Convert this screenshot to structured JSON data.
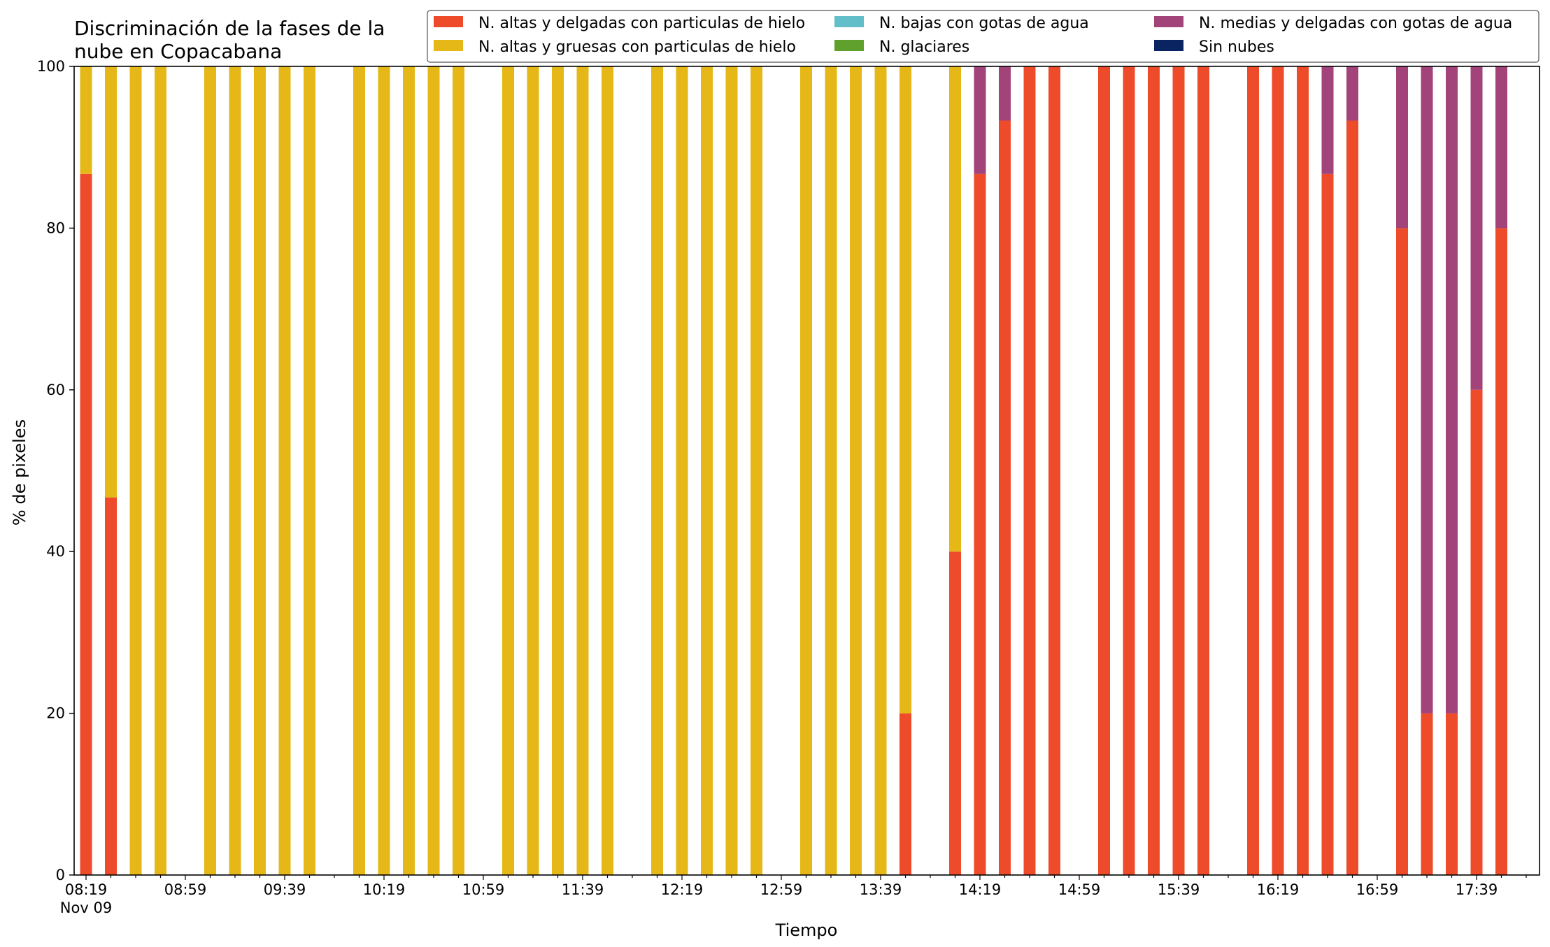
{
  "chart_data": {
    "type": "bar",
    "stacked": true,
    "title": "Discriminación de la fases de la nube en Copacabana",
    "title_lines": [
      "Discriminación de la fases de la",
      "nube en Copacabana"
    ],
    "xlabel": "Tiempo",
    "ylabel": "% de pixeles",
    "ylim": [
      0,
      100
    ],
    "yticks": [
      0,
      20,
      40,
      60,
      80,
      100
    ],
    "x_tick_labels": [
      "08:19",
      "08:59",
      "09:39",
      "10:19",
      "10:59",
      "11:39",
      "12:19",
      "12:59",
      "13:39",
      "14:19",
      "14:59",
      "15:39",
      "16:19",
      "16:59",
      "17:39"
    ],
    "x_tick_sublabel": "Nov 09",
    "x_interval_minutes": 10,
    "legend_placement": "top-right",
    "grid": false,
    "categories": [
      "08:19",
      "08:29",
      "08:39",
      "08:49",
      "08:59",
      "09:09",
      "09:19",
      "09:29",
      "09:39",
      "09:49",
      "09:59",
      "10:09",
      "10:19",
      "10:29",
      "10:39",
      "10:49",
      "10:59",
      "11:09",
      "11:19",
      "11:29",
      "11:39",
      "11:49",
      "11:59",
      "12:09",
      "12:19",
      "12:29",
      "12:39",
      "12:49",
      "12:59",
      "13:09",
      "13:19",
      "13:29",
      "13:39",
      "13:49",
      "13:59",
      "14:09",
      "14:19",
      "14:29",
      "14:39",
      "14:49",
      "14:59",
      "15:09",
      "15:19",
      "15:29",
      "15:39",
      "15:49",
      "15:59",
      "16:09",
      "16:19",
      "16:29",
      "16:39",
      "16:49",
      "16:59",
      "17:09",
      "17:19",
      "17:29",
      "17:39",
      "17:49"
    ],
    "series": [
      {
        "name": "N. altas y delgadas con particulas de hielo",
        "color": "#ee4b2b",
        "values": [
          86.7,
          46.7,
          0,
          0,
          null,
          0,
          0,
          0,
          0,
          0,
          null,
          0,
          0,
          0,
          0,
          0,
          null,
          0,
          0,
          0,
          0,
          0,
          null,
          0,
          0,
          0,
          0,
          0,
          null,
          0,
          0,
          0,
          0,
          20,
          null,
          40,
          86.7,
          93.3,
          100,
          100,
          null,
          100,
          100,
          100,
          100,
          100,
          null,
          100,
          100,
          100,
          86.7,
          93.3,
          null,
          80,
          20,
          20,
          60,
          80
        ]
      },
      {
        "name": "N. altas y gruesas con particulas de hielo",
        "color": "#e6b817",
        "values": [
          13.3,
          53.3,
          100,
          100,
          null,
          100,
          100,
          100,
          100,
          100,
          null,
          100,
          100,
          100,
          100,
          100,
          null,
          100,
          100,
          100,
          100,
          100,
          null,
          100,
          100,
          100,
          100,
          100,
          null,
          100,
          100,
          100,
          100,
          80,
          null,
          60,
          0,
          0,
          0,
          0,
          null,
          0,
          0,
          0,
          0,
          0,
          null,
          0,
          0,
          0,
          0,
          0,
          null,
          0,
          0,
          0,
          0,
          0
        ]
      },
      {
        "name": "N. bajas con gotas de agua",
        "color": "#62bec9",
        "values": [
          0,
          0,
          0,
          0,
          null,
          0,
          0,
          0,
          0,
          0,
          null,
          0,
          0,
          0,
          0,
          0,
          null,
          0,
          0,
          0,
          0,
          0,
          null,
          0,
          0,
          0,
          0,
          0,
          null,
          0,
          0,
          0,
          0,
          0,
          null,
          0,
          0,
          0,
          0,
          0,
          null,
          0,
          0,
          0,
          0,
          0,
          null,
          0,
          0,
          0,
          0,
          0,
          null,
          0,
          0,
          0,
          0,
          0
        ]
      },
      {
        "name": "N. glaciares",
        "color": "#5fa12c",
        "values": [
          0,
          0,
          0,
          0,
          null,
          0,
          0,
          0,
          0,
          0,
          null,
          0,
          0,
          0,
          0,
          0,
          null,
          0,
          0,
          0,
          0,
          0,
          null,
          0,
          0,
          0,
          0,
          0,
          null,
          0,
          0,
          0,
          0,
          0,
          null,
          0,
          0,
          0,
          0,
          0,
          null,
          0,
          0,
          0,
          0,
          0,
          null,
          0,
          0,
          0,
          0,
          0,
          null,
          0,
          0,
          0,
          0,
          0
        ]
      },
      {
        "name": "N. medias y delgadas con gotas de agua",
        "color": "#a2437a",
        "values": [
          0,
          0,
          0,
          0,
          null,
          0,
          0,
          0,
          0,
          0,
          null,
          0,
          0,
          0,
          0,
          0,
          null,
          0,
          0,
          0,
          0,
          0,
          null,
          0,
          0,
          0,
          0,
          0,
          null,
          0,
          0,
          0,
          0,
          0,
          null,
          0,
          13.3,
          6.7,
          0,
          0,
          null,
          0,
          0,
          0,
          0,
          0,
          null,
          0,
          0,
          0,
          13.3,
          6.7,
          null,
          20,
          80,
          80,
          40,
          20
        ]
      },
      {
        "name": "Sin nubes",
        "color": "#0a2462",
        "values": [
          0,
          0,
          0,
          0,
          null,
          0,
          0,
          0,
          0,
          0,
          null,
          0,
          0,
          0,
          0,
          0,
          null,
          0,
          0,
          0,
          0,
          0,
          null,
          0,
          0,
          0,
          0,
          0,
          null,
          0,
          0,
          0,
          0,
          0,
          null,
          0,
          0,
          0,
          0,
          0,
          null,
          0,
          0,
          0,
          0,
          0,
          null,
          0,
          0,
          0,
          0,
          0,
          null,
          0,
          0,
          0,
          0,
          0
        ]
      }
    ]
  }
}
